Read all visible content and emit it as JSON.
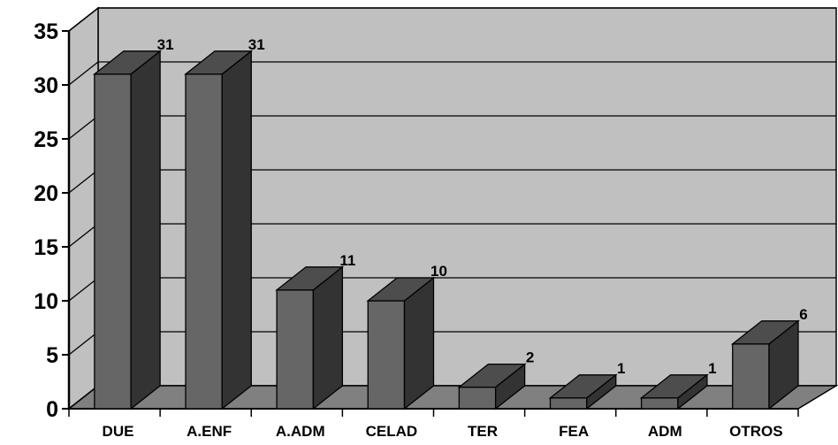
{
  "chart_data": {
    "type": "bar",
    "categories": [
      "DUE",
      "A.ENF",
      "A.ADM",
      "CELAD",
      "TER",
      "FEA",
      "ADM",
      "OTROS"
    ],
    "values": [
      31,
      31,
      11,
      10,
      2,
      1,
      1,
      6
    ],
    "title": "",
    "xlabel": "",
    "ylabel": "",
    "ylim": [
      0,
      35
    ],
    "yticks": [
      "0",
      "5",
      "10",
      "15",
      "20",
      "25",
      "30",
      "35"
    ],
    "grid": true,
    "legend": "none",
    "three_d": true
  },
  "colors": {
    "wall": "#c0c0c0",
    "floor": "#808080",
    "bar_front": "#666666",
    "bar_side": "#333333",
    "bar_top": "#4d4d4d",
    "grid": "#000000"
  }
}
